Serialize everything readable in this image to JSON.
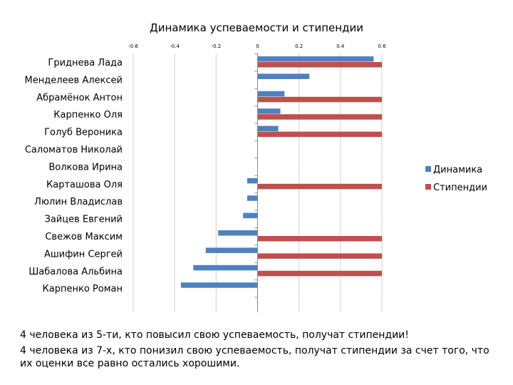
{
  "chart_data": {
    "type": "bar",
    "orientation": "horizontal",
    "title": "Динамика успеваемости и стипендии",
    "categories": [
      "Гриднева Лада",
      "Менделеев Алексей",
      "Абрамёнок Антон",
      "Карпенко Оля",
      "Голуб Вероника",
      "Саломатов Николай",
      "Волкова Ирина",
      "Карташова Оля",
      "Люлин Владислав",
      "Зайцев Евгений",
      "Свежов Максим",
      "Ашифин Сергей",
      "Шабалова Альбина",
      "Карпенко Роман"
    ],
    "series": [
      {
        "name": "Динамика",
        "color": "#4f81bd",
        "values": [
          0.56,
          0.25,
          0.13,
          0.11,
          0.1,
          0,
          0,
          -0.05,
          -0.05,
          -0.07,
          -0.19,
          -0.25,
          -0.31,
          -0.37
        ]
      },
      {
        "name": "Стипендии",
        "color": "#c0504d",
        "values": [
          0.6,
          0,
          0.6,
          0.6,
          0.6,
          0,
          0,
          0.6,
          0,
          0,
          0.6,
          0.6,
          0.6,
          0
        ]
      }
    ],
    "xlim": [
      -0.6,
      0.6
    ],
    "xticks": [
      "-0.6",
      "-0.4",
      "-0.2",
      "0",
      "0.2",
      "0.4",
      "0.6"
    ],
    "xtick_values": [
      -0.6,
      -0.4,
      -0.2,
      0,
      0.2,
      0.4,
      0.6
    ],
    "legend_position": "right",
    "grid": true
  },
  "captions": [
    "4 человека из 5-ти, кто повысил свою успеваемость, получат стипендии!",
    "4 человека из 7-х, кто понизил свою успеваемость, получат стипендии за счет того, что их оценки все равно остались хорошими."
  ]
}
